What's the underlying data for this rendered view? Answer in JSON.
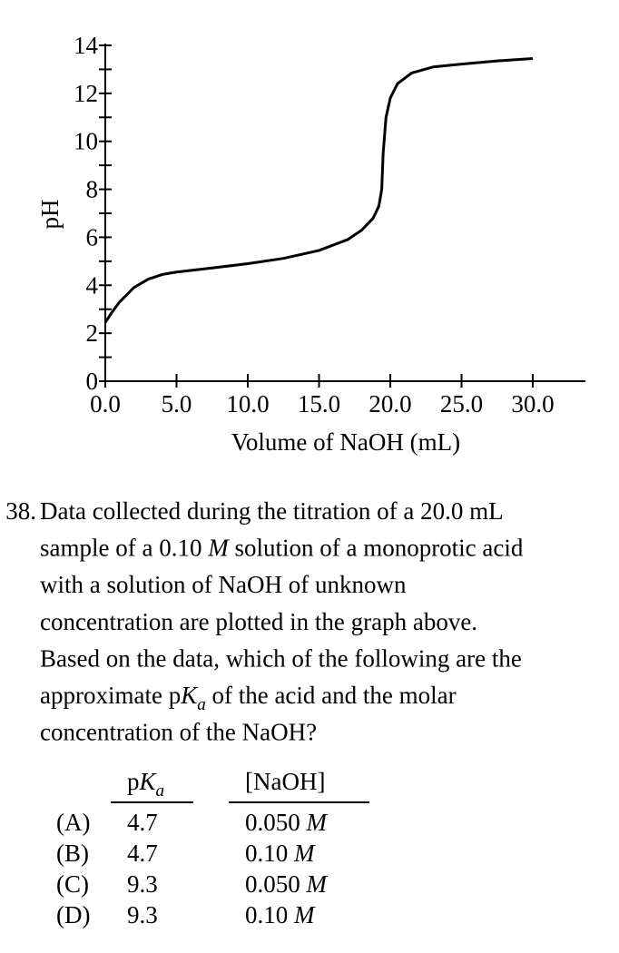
{
  "chart_data": {
    "type": "line",
    "x_label": "Volume of NaOH (mL)",
    "y_label": "pH",
    "x": [
      0,
      0.5,
      1,
      2,
      3,
      4,
      5,
      7.5,
      10,
      12.5,
      15,
      17,
      18,
      18.8,
      19.2,
      19.4,
      19.5,
      19.7,
      20.0,
      20.5,
      21.5,
      23,
      25,
      27.5,
      30
    ],
    "series": [
      {
        "color": "#000000",
        "values": [
          2.45,
          2.9,
          3.3,
          3.9,
          4.25,
          4.45,
          4.55,
          4.72,
          4.9,
          5.12,
          5.45,
          5.9,
          6.3,
          6.8,
          7.3,
          8.0,
          9.5,
          11.0,
          11.8,
          12.4,
          12.85,
          13.1,
          13.22,
          13.35,
          13.45
        ]
      }
    ],
    "xlim": [
      0,
      33.7
    ],
    "ylim": [
      0,
      14
    ],
    "xticks": [
      {
        "value": 0,
        "label": "0.0"
      },
      {
        "value": 5,
        "label": "5.0"
      },
      {
        "value": 10,
        "label": "10.0"
      },
      {
        "value": 15,
        "label": "15.0"
      },
      {
        "value": 20,
        "label": "20.0"
      },
      {
        "value": 25,
        "label": "25.0"
      },
      {
        "value": 30,
        "label": "30.0"
      }
    ],
    "yticks": [
      0,
      2,
      4,
      6,
      8,
      10,
      12,
      14
    ],
    "yminorticks": [
      1,
      3,
      5,
      7,
      9,
      11,
      13
    ]
  },
  "question": {
    "number": "38.",
    "lines": [
      [
        {
          "t": "Data collected during the titration of a 20.0 mL"
        }
      ],
      [
        {
          "t": "sample of a 0.10 "
        },
        {
          "em": "M"
        },
        {
          "t": " solution of a monoprotic acid"
        }
      ],
      [
        {
          "t": "with a solution of NaOH of unknown"
        }
      ],
      [
        {
          "t": "concentration are plotted in the graph above."
        }
      ],
      [
        {
          "t": "Based on the data, which of the following are the"
        }
      ],
      [
        {
          "t": "approximate p"
        },
        {
          "em": "K"
        },
        {
          "sub": "a"
        },
        {
          "t": " of the acid and the molar"
        }
      ],
      [
        {
          "t": "concentration of the NaOH?"
        }
      ]
    ],
    "header": {
      "pka": [
        {
          "t": "p"
        },
        {
          "em": "K"
        },
        {
          "sub": "a"
        }
      ],
      "naoh": "[NaOH]"
    },
    "options": [
      {
        "letter": "(A)",
        "pka": "4.7",
        "naoh": "0.050",
        "unit": "M"
      },
      {
        "letter": "(B)",
        "pka": "4.7",
        "naoh": "0.10",
        "unit": "M"
      },
      {
        "letter": "(C)",
        "pka": "9.3",
        "naoh": "0.050",
        "unit": "M"
      },
      {
        "letter": "(D)",
        "pka": "9.3",
        "naoh": "0.10",
        "unit": "M"
      }
    ]
  }
}
